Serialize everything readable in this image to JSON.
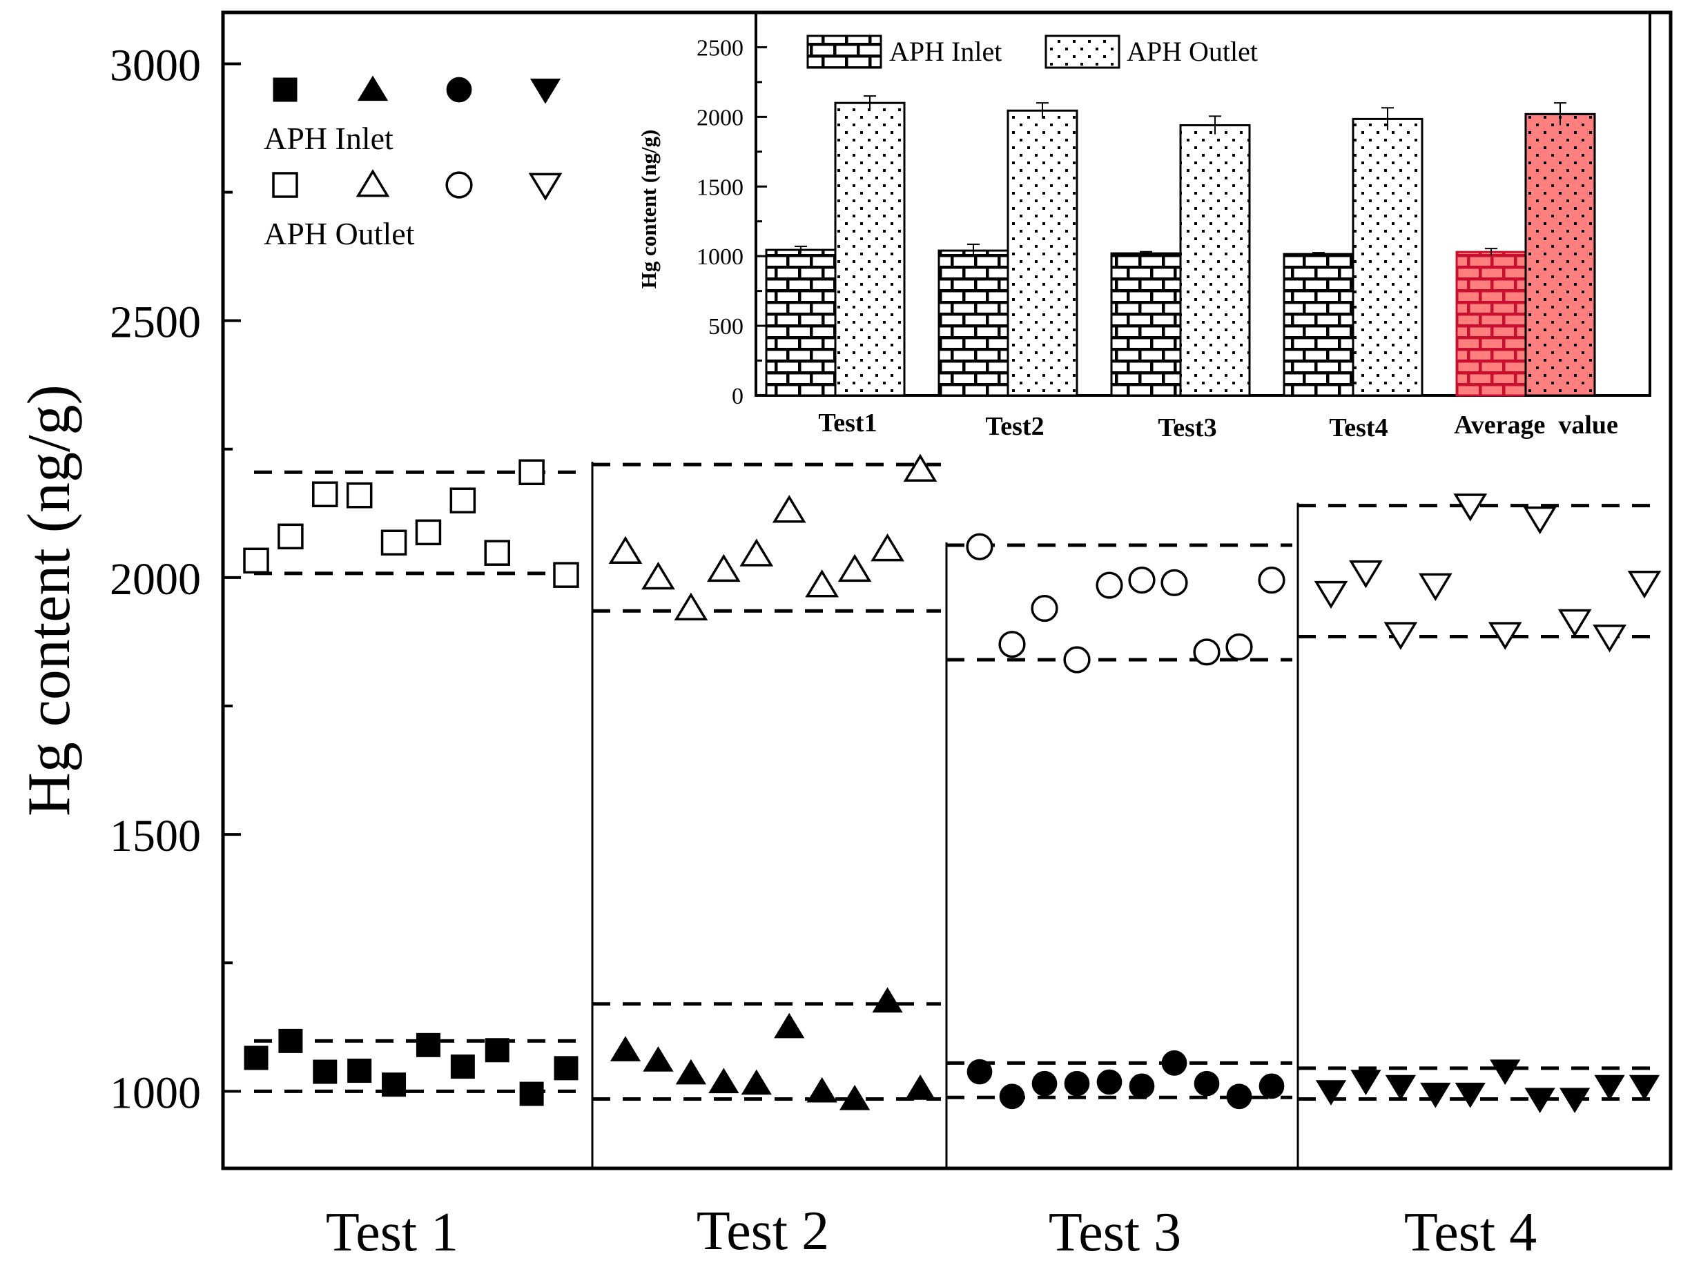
{
  "chart_data": [
    {
      "type": "scatter",
      "title": "",
      "ylabel": "Hg content (ng/g)",
      "xlabel": "",
      "ylim": [
        850,
        3100
      ],
      "yticks": [
        1000,
        1500,
        2000,
        2500,
        3000
      ],
      "y_minor_ticks": [
        1250,
        1750,
        2250,
        2750
      ],
      "groups": [
        "Test 1",
        "Test 2",
        "Test 3",
        "Test 4"
      ],
      "legend": {
        "placement": "top-left",
        "entries": [
          {
            "label": "APH Inlet",
            "markers": [
              "filled-square",
              "filled-triangle-up",
              "filled-circle",
              "filled-triangle-down"
            ]
          },
          {
            "label": "APH Outlet",
            "markers": [
              "open-square",
              "open-triangle-up",
              "open-circle",
              "open-triangle-down"
            ]
          }
        ]
      },
      "series": [
        {
          "group": "Test 1",
          "marker": "square",
          "filled": true,
          "values": [
            1065,
            1098,
            1038,
            1040,
            1013,
            1090,
            1048,
            1080,
            995,
            1045
          ]
        },
        {
          "group": "Test 1",
          "marker": "square",
          "filled": false,
          "values": [
            2033,
            2080,
            2162,
            2160,
            2068,
            2088,
            2150,
            2048,
            2205,
            2005
          ]
        },
        {
          "group": "Test 2",
          "marker": "triangle-up",
          "filled": true,
          "values": [
            1080,
            1060,
            1035,
            1018,
            1015,
            1125,
            1000,
            985,
            1175,
            1005
          ]
        },
        {
          "group": "Test 2",
          "marker": "triangle-up",
          "filled": false,
          "values": [
            2050,
            2000,
            1940,
            2015,
            2045,
            2130,
            1985,
            2015,
            2055,
            2210
          ]
        },
        {
          "group": "Test 3",
          "marker": "circle",
          "filled": true,
          "values": [
            1038,
            990,
            1015,
            1015,
            1018,
            1010,
            1055,
            1015,
            990,
            1010
          ]
        },
        {
          "group": "Test 3",
          "marker": "circle",
          "filled": false,
          "values": [
            2060,
            1870,
            1940,
            1840,
            1985,
            1995,
            1990,
            1855,
            1865,
            1995
          ]
        },
        {
          "group": "Test 4",
          "marker": "triangle-down",
          "filled": true,
          "values": [
            1000,
            1020,
            1010,
            995,
            995,
            1040,
            985,
            985,
            1010,
            1010
          ]
        },
        {
          "group": "Test 4",
          "marker": "triangle-down",
          "filled": false,
          "values": [
            1970,
            2010,
            1890,
            1985,
            2140,
            1890,
            2115,
            1915,
            1885,
            1990
          ]
        }
      ],
      "range_bands": [
        {
          "group": "Test 1",
          "inlet": [
            1000,
            1098
          ],
          "outlet": [
            2008,
            2205
          ]
        },
        {
          "group": "Test 2",
          "inlet": [
            985,
            1170
          ],
          "outlet": [
            1935,
            2220
          ]
        },
        {
          "group": "Test 3",
          "inlet": [
            988,
            1055
          ],
          "outlet": [
            1840,
            2063
          ]
        },
        {
          "group": "Test 4",
          "inlet": [
            985,
            1045
          ],
          "outlet": [
            1885,
            2140
          ]
        }
      ]
    },
    {
      "type": "bar",
      "title": "",
      "ylabel": "Hg content (ng/g)",
      "ylim": [
        0,
        2750
      ],
      "yticks": [
        0,
        500,
        1000,
        1500,
        2000,
        2500
      ],
      "categories": [
        "Test1",
        "Test2",
        "Test3",
        "Test4",
        "Average  value"
      ],
      "legend": {
        "placement": "top-left"
      },
      "series": [
        {
          "name": "APH Inlet",
          "pattern": "brick",
          "values": [
            1045,
            1040,
            1020,
            1015,
            1030
          ],
          "errors": [
            25,
            45,
            12,
            10,
            25
          ]
        },
        {
          "name": "APH  Outlet",
          "pattern": "dots",
          "values": [
            2100,
            2045,
            1940,
            1985,
            2020
          ],
          "errors": [
            50,
            55,
            65,
            80,
            80
          ]
        }
      ],
      "highlight_category": "Average  value",
      "highlight_color": "#ff7f7f",
      "highlight_inlet_color": "#c8102e"
    }
  ]
}
